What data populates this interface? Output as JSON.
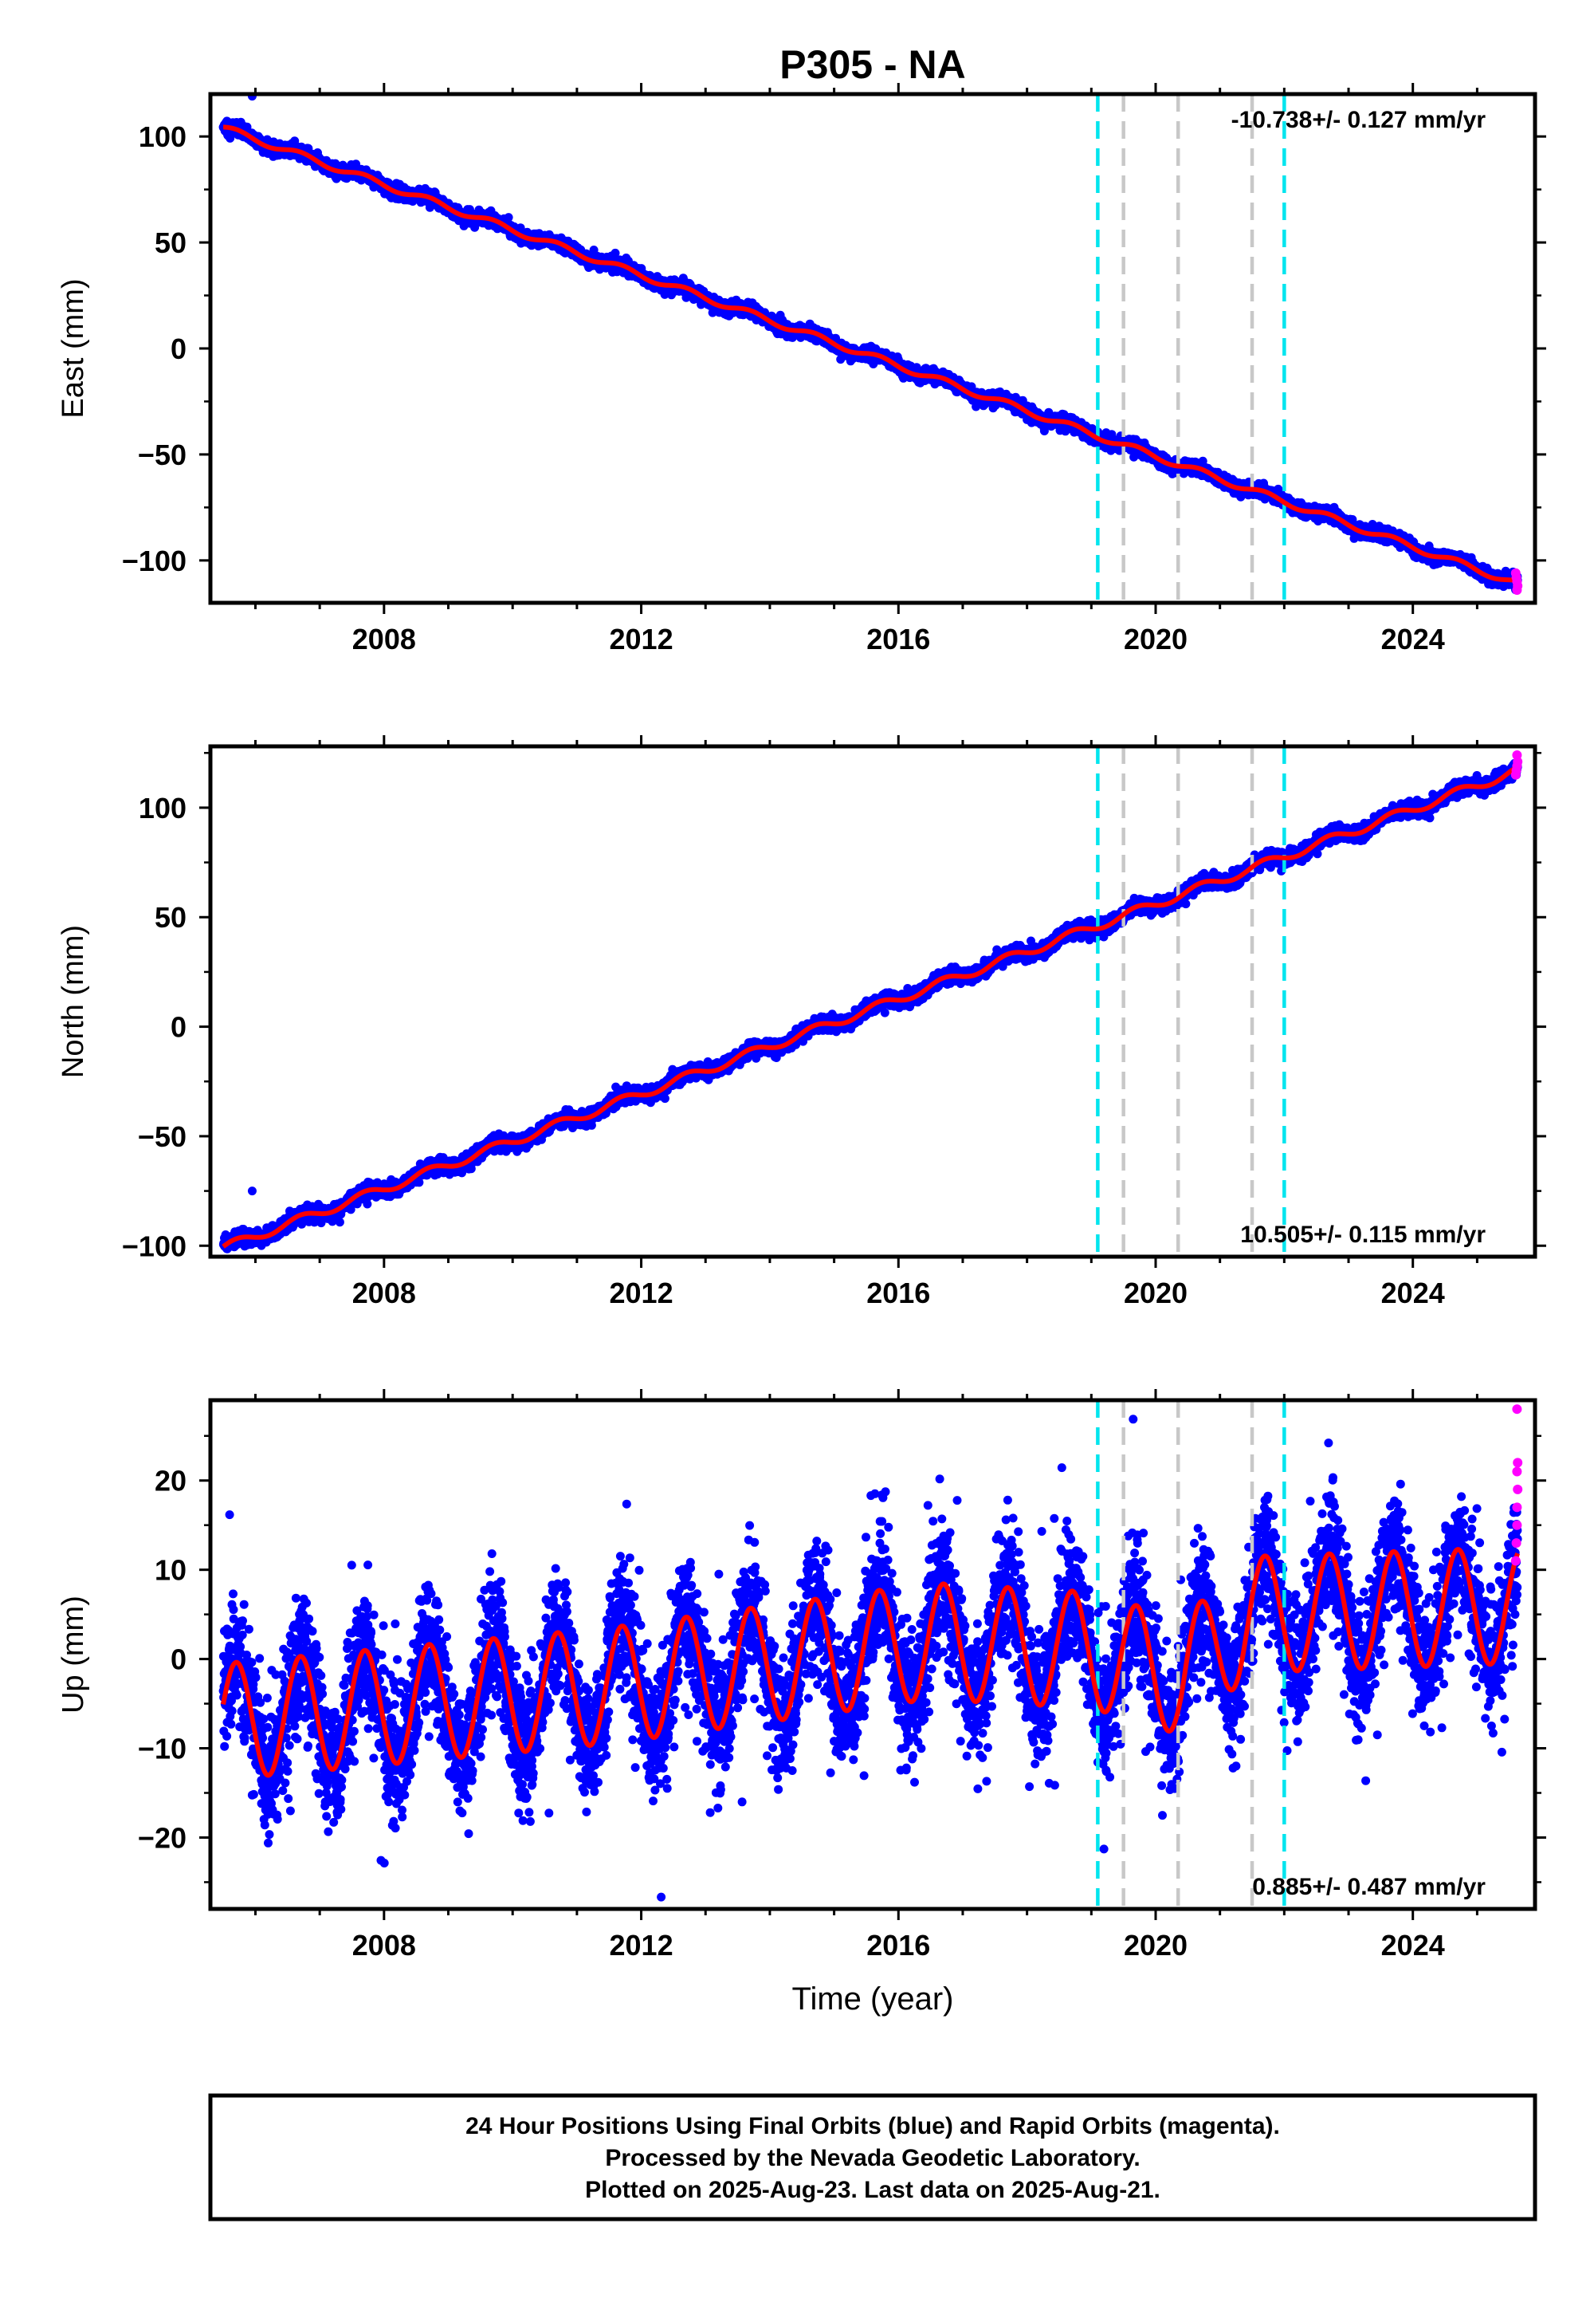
{
  "figure": {
    "title": "P305 - NA",
    "x_axis_label": "Time (year)"
  },
  "footer": {
    "lines": [
      "24 Hour Positions Using Final Orbits (blue) and Rapid Orbits (magenta).",
      "Processed by the Nevada Geodetic Laboratory.",
      "Plotted on 2025-Aug-23. Last data on 2025-Aug-21."
    ]
  },
  "colors": {
    "final_orbits": "#0000ff",
    "rapid_orbits": "#ff00ff",
    "model_fit": "#ff0000",
    "equipment_change": "#00e5ee",
    "other_event": "#c8c8c8"
  },
  "chart_data": [
    {
      "type": "scatter",
      "component": "east",
      "ylabel": "East (mm)",
      "xlim": [
        2005.3,
        2025.9
      ],
      "ylim": [
        -120,
        120
      ],
      "x_ticks": [
        "2008",
        "2012",
        "2016",
        "2020",
        "2024"
      ],
      "y_ticks": [
        "100",
        "50",
        "0",
        "−50",
        "−100"
      ],
      "rate_text": "-10.738+/- 0.127 mm/yr",
      "rate_position": "top-right",
      "data_start_year": 2005.5,
      "data_end_year": 2025.63,
      "start_value": 104,
      "end_value": -111,
      "seasonal_amplitude": 1.5,
      "scatter_sd": 1.5,
      "outliers": [
        {
          "x": 2005.95,
          "y": 119
        }
      ],
      "rapid_orbit_points": [
        {
          "x": 2025.6,
          "y": -106
        },
        {
          "x": 2025.61,
          "y": -108
        },
        {
          "x": 2025.62,
          "y": -110
        },
        {
          "x": 2025.63,
          "y": -112
        },
        {
          "x": 2025.62,
          "y": -114
        }
      ]
    },
    {
      "type": "scatter",
      "component": "north",
      "ylabel": "North (mm)",
      "xlim": [
        2005.3,
        2025.9
      ],
      "ylim": [
        -105,
        128
      ],
      "x_ticks": [
        "2008",
        "2012",
        "2016",
        "2020",
        "2024"
      ],
      "y_ticks": [
        "100",
        "50",
        "0",
        "−50",
        "−100"
      ],
      "rate_text": "10.505+/- 0.115 mm/yr",
      "rate_position": "bottom-right",
      "data_start_year": 2005.5,
      "data_end_year": 2025.63,
      "start_value": -101,
      "end_value": 117,
      "seasonal_amplitude": 2.0,
      "scatter_sd": 1.6,
      "outliers": [
        {
          "x": 2005.95,
          "y": -75
        }
      ],
      "rapid_orbit_points": [
        {
          "x": 2025.6,
          "y": 115
        },
        {
          "x": 2025.61,
          "y": 117
        },
        {
          "x": 2025.62,
          "y": 119
        },
        {
          "x": 2025.63,
          "y": 121
        },
        {
          "x": 2025.62,
          "y": 124
        }
      ]
    },
    {
      "type": "scatter",
      "component": "up",
      "ylabel": "Up (mm)",
      "xlim": [
        2005.3,
        2025.9
      ],
      "ylim": [
        -28,
        29
      ],
      "x_ticks": [
        "2008",
        "2012",
        "2016",
        "2020",
        "2024"
      ],
      "y_ticks": [
        "20",
        "10",
        "0",
        "−10",
        "−20"
      ],
      "rate_text": "0.885+/- 0.487 mm/yr",
      "rate_position": "bottom-right",
      "data_start_year": 2005.5,
      "data_end_year": 2025.63,
      "trend_knots": [
        [
          2005.5,
          -7
        ],
        [
          2011.5,
          -3
        ],
        [
          2014.5,
          0
        ],
        [
          2016.5,
          2
        ],
        [
          2019.0,
          1
        ],
        [
          2020.4,
          -2
        ],
        [
          2021.5,
          5
        ],
        [
          2025.6,
          6
        ]
      ],
      "seasonal_amplitude": 6.5,
      "scatter_sd": 3.5,
      "rapid_orbit_points": [
        {
          "x": 2025.6,
          "y": 11
        },
        {
          "x": 2025.61,
          "y": 13
        },
        {
          "x": 2025.62,
          "y": 15
        },
        {
          "x": 2025.62,
          "y": 17
        },
        {
          "x": 2025.63,
          "y": 19
        },
        {
          "x": 2025.62,
          "y": 21
        },
        {
          "x": 2025.63,
          "y": 22
        },
        {
          "x": 2025.62,
          "y": 28
        }
      ]
    }
  ],
  "events": [
    {
      "x": 2019.1,
      "type": "equipment_change"
    },
    {
      "x": 2019.5,
      "type": "other_event"
    },
    {
      "x": 2020.35,
      "type": "other_event"
    },
    {
      "x": 2021.5,
      "type": "other_event"
    },
    {
      "x": 2022.0,
      "type": "equipment_change"
    }
  ]
}
